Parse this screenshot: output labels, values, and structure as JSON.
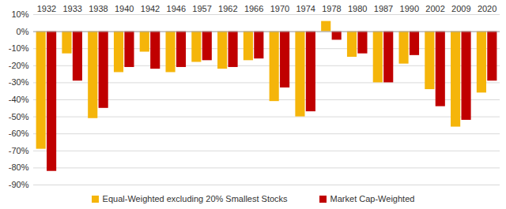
{
  "chart_data": {
    "type": "bar",
    "categories": [
      "1932",
      "1933",
      "1938",
      "1940",
      "1942",
      "1946",
      "1957",
      "1962",
      "1966",
      "1970",
      "1974",
      "1978",
      "1980",
      "1987",
      "1990",
      "2002",
      "2009",
      "2020"
    ],
    "series": [
      {
        "name": "Equal-Weighted excluding 20% Smallest Stocks",
        "color": "#f5b50a",
        "values": [
          -69,
          -13,
          -51,
          -24,
          -12,
          -24,
          -18,
          -22,
          -17,
          -41,
          -50,
          6,
          -15,
          -30,
          -19,
          -34,
          -56,
          -36
        ]
      },
      {
        "name": "Market Cap-Weighted",
        "color": "#c00000",
        "values": [
          -82,
          -29,
          -45,
          -21,
          -22,
          -21,
          -17,
          -21,
          -16,
          -33,
          -47,
          -5,
          -13,
          -30,
          -14,
          -44,
          -52,
          -29
        ]
      }
    ],
    "ylim": [
      -90,
      10
    ],
    "yticks": [
      {
        "value": 10,
        "label": "10%"
      },
      {
        "value": 0,
        "label": "0%"
      },
      {
        "value": -10,
        "label": "-10%"
      },
      {
        "value": -20,
        "label": "-20%"
      },
      {
        "value": -30,
        "label": "-30%"
      },
      {
        "value": -40,
        "label": "-40%"
      },
      {
        "value": -50,
        "label": "-50%"
      },
      {
        "value": -60,
        "label": "-60%"
      },
      {
        "value": -70,
        "label": "-70%"
      },
      {
        "value": -80,
        "label": "-80%"
      },
      {
        "value": -90,
        "label": "-90%"
      }
    ],
    "grid": true,
    "legend": "bottom"
  }
}
